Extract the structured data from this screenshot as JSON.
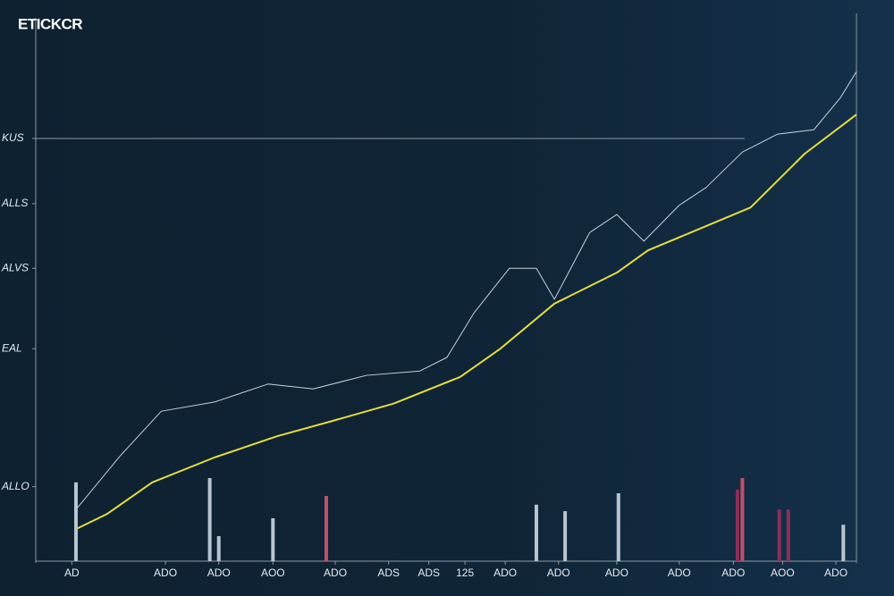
{
  "chart_data": [
    {
      "type": "line",
      "title": "ETICKCR",
      "xlim": [
        0,
        100
      ],
      "ylim": [
        0,
        100
      ],
      "xticks": [
        {
          "value": 4.4,
          "label": "AD"
        },
        {
          "value": 15.8,
          "label": "ADO"
        },
        {
          "value": 22.3,
          "label": "ADO"
        },
        {
          "value": 28.9,
          "label": "AOO"
        },
        {
          "value": 36.5,
          "label": "ADO"
        },
        {
          "value": 43.0,
          "label": "ADS"
        },
        {
          "value": 47.9,
          "label": "ADS"
        },
        {
          "value": 52.3,
          "label": "125"
        },
        {
          "value": 57.2,
          "label": "ADO"
        },
        {
          "value": 63.7,
          "label": "ADO"
        },
        {
          "value": 70.8,
          "label": "ADO"
        },
        {
          "value": 78.4,
          "label": "ADO"
        },
        {
          "value": 85.0,
          "label": "ADO"
        },
        {
          "value": 91.0,
          "label": "AOO"
        },
        {
          "value": 97.5,
          "label": "ADO"
        }
      ],
      "yticks": [
        {
          "value": 13.7,
          "label": "ALLO"
        },
        {
          "value": 39.1,
          "label": "EAL"
        },
        {
          "value": 53.9,
          "label": "ALVS"
        },
        {
          "value": 65.8,
          "label": "ALLS"
        },
        {
          "value": 77.8,
          "label": "KUS"
        }
      ],
      "reference_line": 77.8,
      "series": [
        {
          "color": "#e6dd3a",
          "x": [
            4.9,
            8.7,
            14.2,
            21.8,
            29.4,
            35.9,
            43.6,
            51.7,
            56.6,
            63.2,
            70.8,
            74.6,
            87.1,
            93.7,
            100
          ],
          "values": [
            5.9,
            8.7,
            14.5,
            19.1,
            23.0,
            25.7,
            29.0,
            33.9,
            39.1,
            47.4,
            53.1,
            57.2,
            65.1,
            75.0,
            82.2
          ]
        },
        {
          "color": "#c8d2dc",
          "x": [
            4.9,
            10.3,
            15.3,
            21.8,
            28.3,
            33.8,
            40.3,
            46.8,
            50.1,
            53.4,
            57.7,
            61.0,
            63.2,
            67.5,
            70.8,
            74.1,
            78.4,
            81.7,
            86.1,
            90.4,
            94.8,
            98.0,
            100
          ],
          "values": [
            9.5,
            19.4,
            27.6,
            29.3,
            32.6,
            31.7,
            34.2,
            35.0,
            37.5,
            45.7,
            53.9,
            53.9,
            48.2,
            60.5,
            63.8,
            58.9,
            65.5,
            68.8,
            75.3,
            78.6,
            79.4,
            85.2,
            90.1
          ]
        }
      ]
    },
    {
      "type": "bar",
      "xlim": [
        0,
        100
      ],
      "ylim": [
        0,
        100
      ],
      "x": [
        4.9,
        21.2,
        22.3,
        28.9,
        35.4,
        61.0,
        64.5,
        71.0,
        85.5,
        86.1,
        90.6,
        91.7,
        98.4
      ],
      "values": [
        14.5,
        15.3,
        4.6,
        7.9,
        12.0,
        10.4,
        9.2,
        12.5,
        13.2,
        15.3,
        9.5,
        9.5,
        6.7
      ],
      "colors": [
        "#b8c4d0",
        "#b8c4d0",
        "#b8c4d0",
        "#b8c4d0",
        "#c0506a",
        "#b8c4d0",
        "#b8c4d0",
        "#b8c4d0",
        "#8a2f5a",
        "#c0506a",
        "#8a2f5a",
        "#8a2f5a",
        "#b8c4d0"
      ]
    }
  ]
}
